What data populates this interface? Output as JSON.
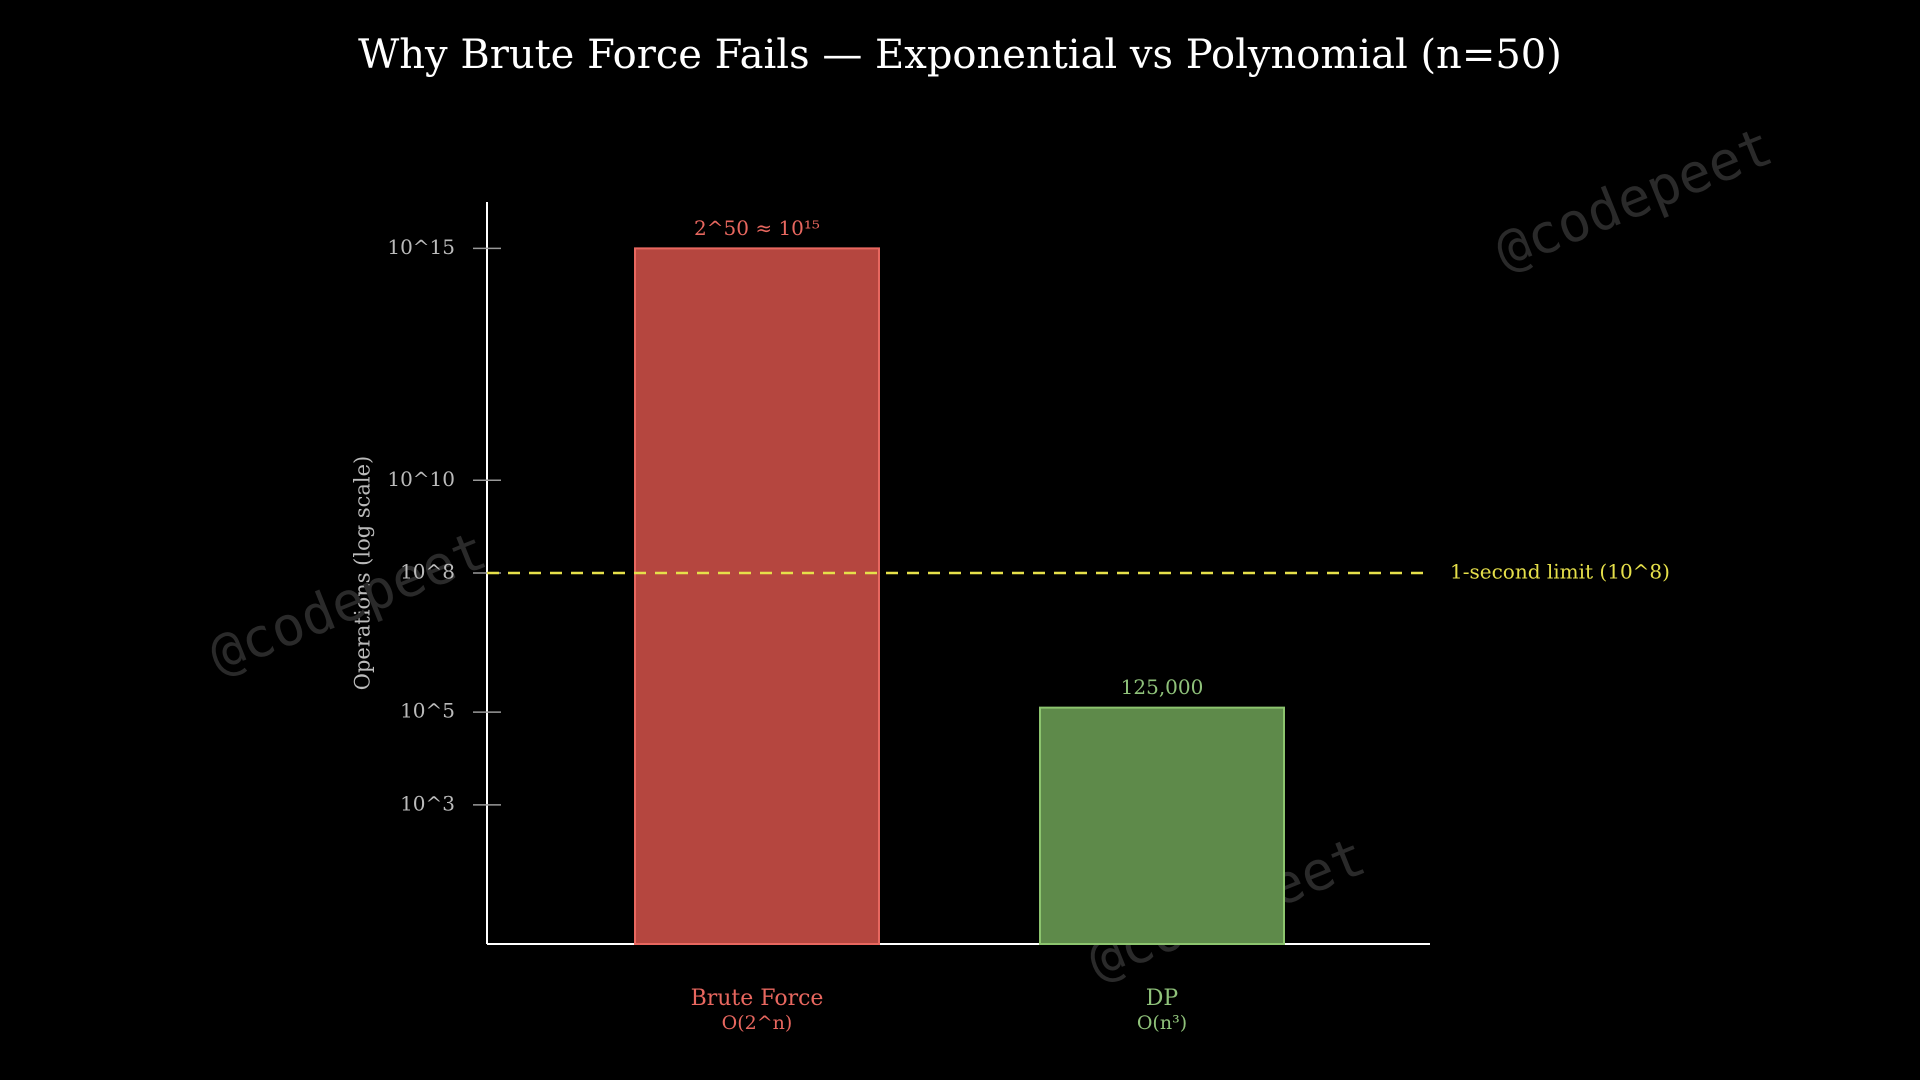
{
  "chart_data": {
    "type": "bar",
    "title": "Why Brute Force Fails — Exponential vs Polynomial (n=50)",
    "y_label": "Operations (log scale)",
    "categories": [
      "Brute Force",
      "DP"
    ],
    "category_notes": [
      "O(2^n)",
      "O(n³)"
    ],
    "values": [
      1000000000000000,
      125000
    ],
    "value_labels": [
      "2^50 ≈ 10¹⁵",
      "125,000"
    ],
    "colors": [
      "#b5463f",
      "#5e8a4a"
    ],
    "edge_colors": [
      "#e8675f",
      "#8cc46e"
    ],
    "label_colors": [
      "#e8675f",
      "#8fc27a"
    ],
    "log_scale": true,
    "ylim": [
      1,
      10000000000000000
    ],
    "yticks": [
      {
        "value": 1000,
        "label": "10^3"
      },
      {
        "value": 100000,
        "label": "10^5"
      },
      {
        "value": 100000000,
        "label": "10^8"
      },
      {
        "value": 10000000000,
        "label": "10^10"
      },
      {
        "value": 1000000000000000,
        "label": "10^15"
      }
    ],
    "reference_line": {
      "value": 100000000,
      "label": "1-second limit (10^8)",
      "color": "#e6e04a"
    },
    "watermark": "@codepeet"
  }
}
